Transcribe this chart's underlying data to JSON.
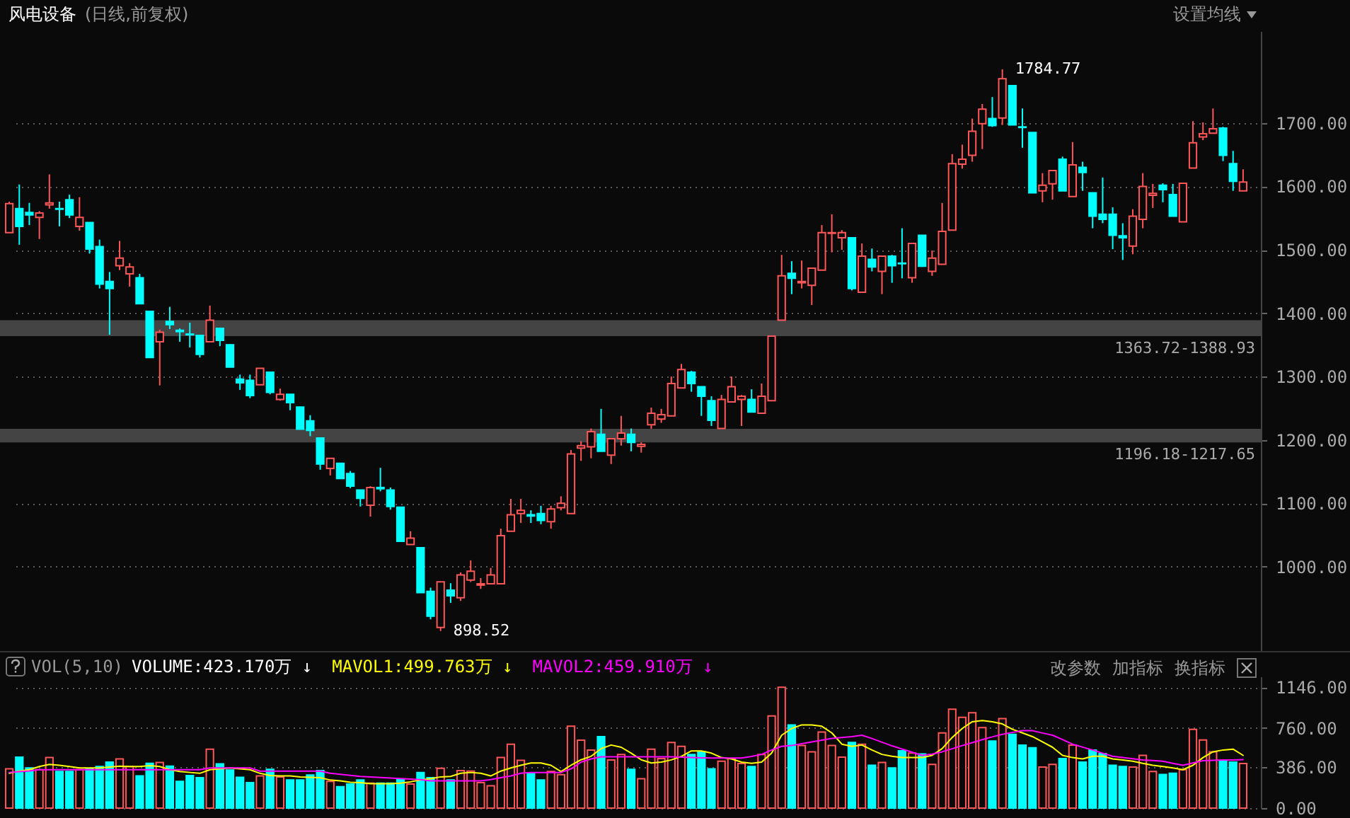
{
  "chart_data": [
    {
      "type": "candlestick",
      "title": "风电设备",
      "subtitle": "(日线,前复权)",
      "categories": [
        null,
        null,
        null,
        null,
        null,
        null,
        null,
        null,
        null,
        null,
        null,
        null,
        null,
        null,
        null,
        null,
        null,
        null,
        null,
        null,
        null,
        null,
        null,
        null,
        null,
        null,
        null,
        null,
        null,
        null,
        null,
        null,
        null,
        null,
        null,
        null,
        null,
        null,
        null,
        null,
        null,
        null,
        null,
        null,
        null,
        null,
        null,
        null,
        null,
        null,
        null,
        null,
        null,
        null,
        null,
        null,
        null,
        null,
        null,
        null,
        null,
        null,
        null,
        null,
        null,
        null,
        null,
        null,
        null,
        null,
        null,
        null,
        null,
        null,
        null,
        null,
        null,
        null,
        null,
        null,
        null,
        null,
        null,
        null,
        null,
        null,
        null,
        null,
        null,
        null,
        null,
        null,
        null,
        null,
        null,
        null,
        null,
        null,
        null,
        null,
        null,
        null,
        null,
        null,
        null,
        null,
        null,
        null,
        null,
        null,
        null,
        null,
        null,
        null,
        null,
        null,
        null,
        null,
        null,
        null,
        null,
        null,
        null,
        null
      ],
      "ohlc": [
        [
          1527,
          1576,
          1527,
          1573
        ],
        [
          1565,
          1603,
          1508,
          1537
        ],
        [
          1559,
          1574,
          1539,
          1555
        ],
        [
          1551,
          1561,
          1517,
          1558
        ],
        [
          1571,
          1619,
          1565,
          1574
        ],
        [
          1565,
          1576,
          1537,
          1564
        ],
        [
          1579,
          1587,
          1550,
          1555
        ],
        [
          1537,
          1583,
          1530,
          1551
        ],
        [
          1543,
          1543,
          1494,
          1501
        ],
        [
          1505,
          1516,
          1439,
          1446
        ],
        [
          1450,
          1465,
          1366,
          1439
        ],
        [
          1475,
          1514,
          1468,
          1487
        ],
        [
          1462,
          1479,
          1442,
          1473
        ],
        [
          1456,
          1462,
          1415,
          1415
        ],
        [
          1403,
          1403,
          1330,
          1330
        ],
        [
          1355,
          1374,
          1286,
          1370
        ],
        [
          1387,
          1410,
          1375,
          1382
        ],
        [
          1373,
          1376,
          1355,
          1371
        ],
        [
          1367,
          1385,
          1346,
          1366
        ],
        [
          1365,
          1365,
          1330,
          1335
        ],
        [
          1355,
          1412,
          1355,
          1389
        ],
        [
          1376,
          1376,
          1348,
          1357
        ],
        [
          1350,
          1351,
          1315,
          1315
        ],
        [
          1296,
          1303,
          1279,
          1290
        ],
        [
          1294,
          1303,
          1266,
          1270
        ],
        [
          1287,
          1313,
          1287,
          1313
        ],
        [
          1307,
          1307,
          1272,
          1275
        ],
        [
          1264,
          1281,
          1262,
          1272
        ],
        [
          1272,
          1272,
          1247,
          1259
        ],
        [
          1252,
          1252,
          1217,
          1217
        ],
        [
          1230,
          1239,
          1206,
          1215
        ],
        [
          1203,
          1203,
          1153,
          1162
        ],
        [
          1155,
          1171,
          1144,
          1171
        ],
        [
          1163,
          1163,
          1139,
          1139
        ],
        [
          1147,
          1151,
          1124,
          1127
        ],
        [
          1121,
          1121,
          1095,
          1108
        ],
        [
          1097,
          1127,
          1079,
          1125
        ],
        [
          1125,
          1156,
          1119,
          1123
        ],
        [
          1121,
          1125,
          1090,
          1095
        ],
        [
          1094,
          1094,
          1039,
          1040
        ],
        [
          1035,
          1056,
          1035,
          1045
        ],
        [
          1030,
          1030,
          959,
          959
        ],
        [
          961,
          967,
          917,
          922
        ],
        [
          904,
          976,
          898.52,
          976
        ],
        [
          963,
          974,
          943,
          954
        ],
        [
          951,
          991,
          946,
          987
        ],
        [
          979,
          1010,
          976,
          993
        ],
        [
          971,
          982,
          965,
          973
        ],
        [
          973,
          998,
          973,
          987
        ],
        [
          973,
          1060,
          973,
          1049
        ],
        [
          1056,
          1107,
          1056,
          1082
        ],
        [
          1084,
          1107,
          1069,
          1089
        ],
        [
          1082,
          1089,
          1069,
          1080
        ],
        [
          1084,
          1096,
          1067,
          1073
        ],
        [
          1071,
          1096,
          1060,
          1091
        ],
        [
          1093,
          1111,
          1089,
          1100
        ],
        [
          1084,
          1184,
          1084,
          1178
        ],
        [
          1187,
          1198,
          1167,
          1191
        ],
        [
          1189,
          1218,
          1171,
          1213
        ],
        [
          1209,
          1249,
          1182,
          1182
        ],
        [
          1176,
          1202,
          1162,
          1202
        ],
        [
          1202,
          1238,
          1191,
          1211
        ],
        [
          1209,
          1218,
          1182,
          1196
        ],
        [
          1190,
          1196.18,
          1180,
          1193
        ],
        [
          1224,
          1251,
          1217.65,
          1242
        ],
        [
          1233,
          1249,
          1227,
          1240
        ],
        [
          1238,
          1300,
          1238,
          1289
        ],
        [
          1282,
          1320,
          1282,
          1311
        ],
        [
          1307,
          1309,
          1276,
          1289
        ],
        [
          1284,
          1284,
          1238,
          1269
        ],
        [
          1262,
          1269,
          1222,
          1231
        ],
        [
          1218,
          1271,
          1218,
          1264
        ],
        [
          1260,
          1300,
          1260,
          1284
        ],
        [
          1264,
          1271,
          1222,
          1269
        ],
        [
          1264,
          1280,
          1244,
          1244
        ],
        [
          1242,
          1289,
          1242,
          1269
        ],
        [
          1262,
          1363.72,
          1262,
          1363.72
        ],
        [
          1388.93,
          1492,
          1388.93,
          1459
        ],
        [
          1463,
          1482,
          1430,
          1455
        ],
        [
          1448,
          1483,
          1439,
          1450
        ],
        [
          1444,
          1471,
          1413,
          1471
        ],
        [
          1468,
          1539,
          1468,
          1527
        ],
        [
          1526,
          1556,
          1496,
          1527
        ],
        [
          1519,
          1531,
          1500,
          1527
        ],
        [
          1519,
          1519,
          1436,
          1439
        ],
        [
          1433,
          1510,
          1433,
          1490
        ],
        [
          1485,
          1502,
          1466,
          1473
        ],
        [
          1466,
          1491,
          1430,
          1490
        ],
        [
          1490,
          1492,
          1448,
          1475
        ],
        [
          1479,
          1534,
          1455,
          1478
        ],
        [
          1456,
          1511,
          1448,
          1510
        ],
        [
          1523,
          1523,
          1473,
          1474
        ],
        [
          1466,
          1499,
          1459,
          1487
        ],
        [
          1477,
          1574,
          1477,
          1529
        ],
        [
          1531,
          1651,
          1531,
          1636
        ],
        [
          1635,
          1666,
          1628,
          1643
        ],
        [
          1649,
          1707,
          1639,
          1687
        ],
        [
          1699,
          1730,
          1659,
          1722
        ],
        [
          1707,
          1741,
          1694,
          1696
        ],
        [
          1708,
          1784.77,
          1697,
          1770
        ],
        [
          1759,
          1759,
          1697,
          1697
        ],
        [
          1694,
          1723,
          1661,
          1693
        ],
        [
          1685,
          1685,
          1590,
          1590
        ],
        [
          1593,
          1621,
          1575,
          1602
        ],
        [
          1604,
          1625,
          1579,
          1625
        ],
        [
          1643,
          1647,
          1593,
          1593
        ],
        [
          1584,
          1670,
          1584,
          1634
        ],
        [
          1630,
          1639,
          1593,
          1622
        ],
        [
          1590,
          1590,
          1534,
          1553
        ],
        [
          1556,
          1614,
          1542,
          1548
        ],
        [
          1556,
          1567,
          1501,
          1523
        ],
        [
          1522,
          1542,
          1484,
          1519
        ],
        [
          1506,
          1564,
          1493,
          1553
        ],
        [
          1548,
          1621,
          1534,
          1600
        ],
        [
          1586,
          1604,
          1566,
          1589
        ],
        [
          1602,
          1605,
          1575,
          1595
        ],
        [
          1587,
          1604,
          1553,
          1553
        ],
        [
          1544,
          1605,
          1544,
          1605
        ],
        [
          1629,
          1703,
          1629,
          1669
        ],
        [
          1678,
          1701,
          1673,
          1683
        ],
        [
          1684,
          1723,
          1684,
          1691
        ],
        [
          1692,
          1694,
          1640,
          1649
        ],
        [
          1636,
          1656,
          1593,
          1608
        ],
        [
          1593,
          1627,
          1593,
          1607
        ]
      ],
      "colors": [
        "#ff5757",
        "#00ffff",
        "#00ffff",
        "#ff5757",
        "#ff5757",
        "#00ffff",
        "#00ffff",
        "#ff5757",
        "#00ffff",
        "#00ffff",
        "#00ffff",
        "#ff5757",
        "#ff5757",
        "#00ffff",
        "#00ffff",
        "#ff5757",
        "#00ffff",
        "#00ffff",
        "#00ffff",
        "#00ffff",
        "#ff5757",
        "#00ffff",
        "#00ffff",
        "#00ffff",
        "#00ffff",
        "#ff5757",
        "#00ffff",
        "#ff5757",
        "#00ffff",
        "#00ffff",
        "#00ffff",
        "#00ffff",
        "#ff5757",
        "#00ffff",
        "#00ffff",
        "#00ffff",
        "#ff5757",
        "#00ffff",
        "#00ffff",
        "#00ffff",
        "#ff5757",
        "#00ffff",
        "#00ffff",
        "#ff5757",
        "#00ffff",
        "#ff5757",
        "#ff5757",
        "#ff5757",
        "#ff5757",
        "#ff5757",
        "#ff5757",
        "#ff5757",
        "#00ffff",
        "#00ffff",
        "#ff5757",
        "#ff5757",
        "#ff5757",
        "#ff5757",
        "#ff5757",
        "#00ffff",
        "#ff5757",
        "#ff5757",
        "#00ffff",
        "#ff5757",
        "#ff5757",
        "#ff5757",
        "#ff5757",
        "#ff5757",
        "#00ffff",
        "#00ffff",
        "#00ffff",
        "#ff5757",
        "#ff5757",
        "#ff5757",
        "#00ffff",
        "#ff5757",
        "#ff5757",
        "#ff5757",
        "#00ffff",
        "#ff5757",
        "#ff5757",
        "#ff5757",
        "#ff5757",
        "#ff5757",
        "#00ffff",
        "#ff5757",
        "#00ffff",
        "#ff5757",
        "#00ffff",
        "#00ffff",
        "#ff5757",
        "#00ffff",
        "#ff5757",
        "#ff5757",
        "#ff5757",
        "#ff5757",
        "#ff5757",
        "#ff5757",
        "#00ffff",
        "#ff5757",
        "#00ffff",
        "#00ffff",
        "#00ffff",
        "#ff5757",
        "#ff5757",
        "#00ffff",
        "#ff5757",
        "#00ffff",
        "#00ffff",
        "#00ffff",
        "#00ffff",
        "#00ffff",
        "#ff5757",
        "#ff5757",
        "#ff5757",
        "#00ffff",
        "#00ffff",
        "#ff5757",
        "#ff5757",
        "#ff5757",
        "#ff5757",
        "#00ffff",
        "#00ffff",
        "#ff5757"
      ],
      "ylim": [
        867,
        1845
      ],
      "yticks": [
        {
          "value": 1000,
          "label": "1000.00"
        },
        {
          "value": 1100,
          "label": "1100.00"
        },
        {
          "value": 1200,
          "label": "1200.00"
        },
        {
          "value": 1300,
          "label": "1300.00"
        },
        {
          "value": 1400,
          "label": "1400.00"
        },
        {
          "value": 1500,
          "label": "1500.00"
        },
        {
          "value": 1600,
          "label": "1600.00"
        },
        {
          "value": 1700,
          "label": "1700.00"
        }
      ],
      "grid": "y",
      "bands": [
        {
          "axis": "y",
          "from": 1363.72,
          "to": 1388.93,
          "label": "1363.72-1388.93",
          "color": "#444444"
        },
        {
          "axis": "y",
          "from": 1196.18,
          "to": 1217.65,
          "label": "1196.18-1217.65",
          "color": "#444444"
        }
      ],
      "annotations": [
        "1784.77",
        "898.52",
        "设置均线"
      ]
    },
    {
      "type": "bar",
      "title": "VOL(5,10)",
      "categories": [
        null,
        null,
        null,
        null,
        null,
        null,
        null,
        null,
        null,
        null,
        null,
        null,
        null,
        null,
        null,
        null,
        null,
        null,
        null,
        null,
        null,
        null,
        null,
        null,
        null,
        null,
        null,
        null,
        null,
        null,
        null,
        null,
        null,
        null,
        null,
        null,
        null,
        null,
        null,
        null,
        null,
        null,
        null,
        null,
        null,
        null,
        null,
        null,
        null,
        null,
        null,
        null,
        null,
        null,
        null,
        null,
        null,
        null,
        null,
        null,
        null,
        null,
        null,
        null,
        null,
        null,
        null,
        null,
        null,
        null,
        null,
        null,
        null,
        null,
        null,
        null,
        null,
        null,
        null,
        null,
        null,
        null,
        null,
        null,
        null,
        null,
        null,
        null,
        null,
        null,
        null,
        null,
        null,
        null,
        null,
        null,
        null,
        null,
        null,
        null,
        null,
        null,
        null,
        null,
        null,
        null,
        null,
        null,
        null,
        null,
        null,
        null,
        null,
        null,
        null,
        null,
        null,
        null,
        null,
        null,
        null,
        null,
        null,
        null
      ],
      "series": [
        {
          "colors": [
            "#ff5757",
            "#00ffff",
            "#00ffff",
            "#ff5757",
            "#ff5757",
            "#00ffff",
            "#00ffff",
            "#ff5757",
            "#00ffff",
            "#00ffff",
            "#00ffff",
            "#ff5757",
            "#ff5757",
            "#00ffff",
            "#00ffff",
            "#ff5757",
            "#00ffff",
            "#00ffff",
            "#00ffff",
            "#00ffff",
            "#ff5757",
            "#00ffff",
            "#00ffff",
            "#00ffff",
            "#00ffff",
            "#ff5757",
            "#00ffff",
            "#ff5757",
            "#00ffff",
            "#00ffff",
            "#00ffff",
            "#00ffff",
            "#ff5757",
            "#00ffff",
            "#00ffff",
            "#00ffff",
            "#ff5757",
            "#00ffff",
            "#00ffff",
            "#00ffff",
            "#ff5757",
            "#00ffff",
            "#00ffff",
            "#ff5757",
            "#00ffff",
            "#ff5757",
            "#ff5757",
            "#ff5757",
            "#ff5757",
            "#ff5757",
            "#ff5757",
            "#ff5757",
            "#00ffff",
            "#00ffff",
            "#ff5757",
            "#ff5757",
            "#ff5757",
            "#ff5757",
            "#ff5757",
            "#00ffff",
            "#ff5757",
            "#ff5757",
            "#00ffff",
            "#ff5757",
            "#ff5757",
            "#ff5757",
            "#ff5757",
            "#ff5757",
            "#00ffff",
            "#00ffff",
            "#00ffff",
            "#ff5757",
            "#ff5757",
            "#ff5757",
            "#00ffff",
            "#ff5757",
            "#ff5757",
            "#ff5757",
            "#00ffff",
            "#ff5757",
            "#ff5757",
            "#ff5757",
            "#ff5757",
            "#ff5757",
            "#00ffff",
            "#ff5757",
            "#00ffff",
            "#ff5757",
            "#00ffff",
            "#00ffff",
            "#ff5757",
            "#00ffff",
            "#ff5757",
            "#ff5757",
            "#ff5757",
            "#ff5757",
            "#ff5757",
            "#ff5757",
            "#00ffff",
            "#ff5757",
            "#00ffff",
            "#00ffff",
            "#00ffff",
            "#ff5757",
            "#ff5757",
            "#00ffff",
            "#ff5757",
            "#00ffff",
            "#00ffff",
            "#00ffff",
            "#00ffff",
            "#00ffff",
            "#ff5757",
            "#ff5757",
            "#ff5757",
            "#00ffff",
            "#00ffff",
            "#ff5757",
            "#ff5757",
            "#ff5757",
            "#ff5757",
            "#00ffff",
            "#00ffff",
            "#ff5757"
          ],
          "values": [
            373,
            483,
            381,
            364,
            479,
            347,
            347,
            364,
            372,
            394,
            436,
            466,
            394,
            305,
            424,
            432,
            398,
            254,
            309,
            288,
            559,
            419,
            360,
            292,
            241,
            305,
            368,
            296,
            266,
            266,
            313,
            356,
            254,
            203,
            228,
            266,
            236,
            236,
            236,
            275,
            228,
            338,
            288,
            377,
            266,
            356,
            351,
            241,
            211,
            479,
            606,
            453,
            330,
            266,
            347,
            317,
            776,
            644,
            551,
            678,
            457,
            508,
            368,
            279,
            559,
            470,
            623,
            585,
            509,
            534,
            372,
            445,
            470,
            423,
            394,
            509,
            874,
            1146,
            789,
            594,
            534,
            721,
            594,
            483,
            623,
            606,
            406,
            432,
            381,
            543,
            521,
            513,
            415,
            713,
            938,
            861,
            904,
            764,
            636,
            849,
            700,
            598,
            572,
            390,
            415,
            470,
            598,
            436,
            551,
            517,
            406,
            394,
            389,
            500,
            347,
            318,
            330,
            364,
            747,
            645,
            534,
            449,
            436,
            423
          ]
        },
        {
          "name": "MAVOL1:499.763万 ↓",
          "type": "line",
          "color": "#ffff00",
          "values": [
            330,
            351,
            364,
            394,
            415,
            406,
            394,
            381,
            381,
            381,
            389,
            398,
            394,
            394,
            402,
            394,
            364,
            347,
            338,
            330,
            364,
            372,
            381,
            372,
            364,
            330,
            309,
            305,
            305,
            296,
            292,
            288,
            266,
            258,
            245,
            241,
            232,
            232,
            232,
            236,
            249,
            266,
            279,
            296,
            300,
            330,
            338,
            330,
            305,
            351,
            381,
            406,
            428,
            428,
            406,
            347,
            406,
            458,
            491,
            564,
            598,
            577,
            521,
            458,
            428,
            436,
            457,
            491,
            542,
            542,
            521,
            479,
            466,
            436,
            424,
            436,
            521,
            691,
            755,
            789,
            789,
            776,
            713,
            606,
            585,
            598,
            551,
            509,
            491,
            479,
            479,
            479,
            500,
            564,
            670,
            755,
            819,
            831,
            819,
            798,
            747,
            713,
            678,
            628,
            577,
            500,
            479,
            466,
            491,
            491,
            466,
            457,
            445,
            424,
            406,
            394,
            381,
            364,
            406,
            479,
            534,
            551,
            559,
            500
          ]
        },
        {
          "name": "MAVOL2:459.910万 ↓",
          "type": "line",
          "color": "#ff00ff",
          "values": [
            338,
            345,
            352,
            364,
            364,
            364,
            364,
            364,
            364,
            364,
            364,
            364,
            364,
            364,
            364,
            364,
            364,
            364,
            364,
            364,
            381,
            381,
            381,
            381,
            381,
            351,
            351,
            351,
            351,
            351,
            351,
            351,
            330,
            320,
            310,
            300,
            295,
            290,
            285,
            280,
            275,
            270,
            258,
            258,
            258,
            258,
            258,
            258,
            270,
            288,
            305,
            330,
            338,
            338,
            338,
            338,
            372,
            436,
            466,
            487,
            487,
            487,
            487,
            487,
            487,
            487,
            487,
            483,
            479,
            476,
            474,
            474,
            474,
            474,
            490,
            509,
            551,
            585,
            593,
            610,
            627,
            644,
            661,
            670,
            678,
            691,
            660,
            625,
            590,
            560,
            530,
            500,
            512,
            534,
            563,
            593,
            621,
            649,
            675,
            700,
            717,
            734,
            734,
            712,
            691,
            650,
            606,
            578,
            551,
            521,
            491,
            480,
            468,
            457,
            451,
            445,
            425,
            406,
            428,
            449,
            453,
            457,
            457,
            460
          ]
        }
      ],
      "ylim": [
        0,
        1248
      ],
      "yticks": [
        {
          "value": 0,
          "label": "0.00"
        },
        {
          "value": 386,
          "label": "386.00"
        },
        {
          "value": 760,
          "label": "760.00"
        },
        {
          "value": 1146,
          "label": "1146.00"
        }
      ],
      "grid": "y",
      "legend": "top left",
      "annotations": [
        "VOLUME:423.170万 ↓",
        "改参数",
        "加指标",
        "换指标"
      ]
    }
  ]
}
